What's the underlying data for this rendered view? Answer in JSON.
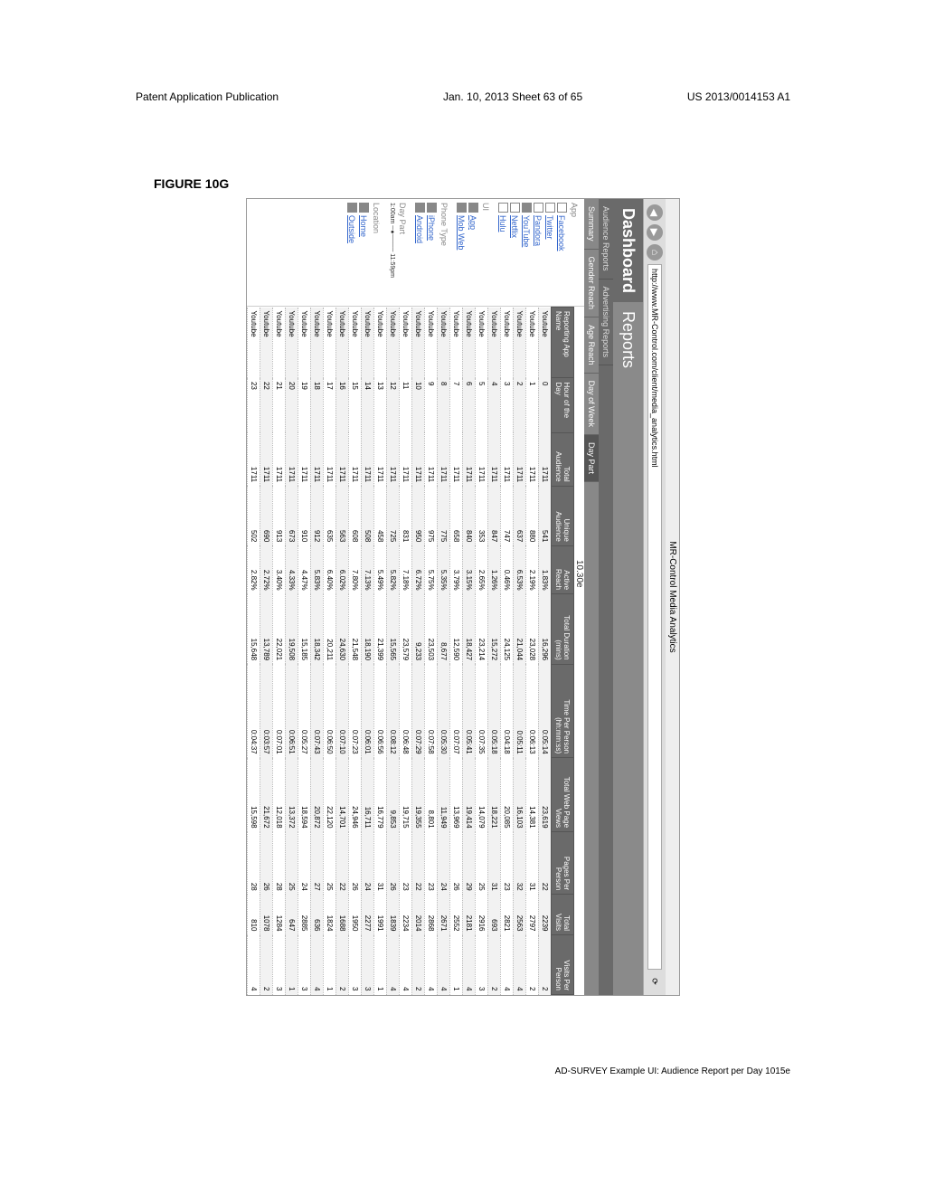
{
  "pageHeader": {
    "left": "Patent Application Publication",
    "sheet": "Jan. 10, 2013  Sheet 63 of 65",
    "right": "US 2013/0014153 A1"
  },
  "figure": {
    "label": "FIGURE 10G",
    "caption": "AD-SURVEY Example UI: Audience Report per Day 1015e"
  },
  "browser": {
    "title": "MR-Control Media Analytics",
    "url": "http://www.MR-Control.com/client/media_analytics.html"
  },
  "dashboard": {
    "left": "Dashboard",
    "right": "Reports"
  },
  "tabs1": [
    "Audience Reports",
    "Advertising Reports"
  ],
  "tabs2": [
    "Summary",
    "Gender Reach",
    "Age Reach",
    "Day of Week",
    "Day Part"
  ],
  "callout": "10.30e",
  "sidebar": {
    "app": {
      "header": "App",
      "items": [
        {
          "label": "Facebook",
          "checked": false
        },
        {
          "label": "Twitter",
          "checked": false
        },
        {
          "label": "Pandora",
          "checked": false
        },
        {
          "label": "YouTube",
          "checked": true
        },
        {
          "label": "Netflix",
          "checked": false
        },
        {
          "label": "Hulu",
          "checked": false
        }
      ]
    },
    "ui": {
      "header": "UI",
      "items": [
        {
          "label": "App",
          "checked": true
        },
        {
          "label": "Mob Web",
          "checked": true
        }
      ]
    },
    "phone": {
      "header": "Phone Type",
      "items": [
        {
          "label": "iPhone",
          "checked": true
        },
        {
          "label": "Android",
          "checked": true
        }
      ]
    },
    "daypart": {
      "header": "Day Part"
    },
    "location": {
      "header": "Location",
      "items": [
        {
          "label": "Home",
          "checked": true
        },
        {
          "label": "Outside",
          "checked": true
        }
      ]
    }
  },
  "table": {
    "columns": [
      "Reporting App Name",
      "Hour of the Day",
      "Total Audience",
      "Unique Audience",
      "Active Reach",
      "Total Duration (mins)",
      "Time Per Person (hh:mm:ss)",
      "Total Web Page Views",
      "Pages Per Person",
      "Total Visits",
      "Visits Per Person"
    ],
    "rows": [
      [
        "Youtube",
        "0",
        "1711",
        "541",
        "1.83%",
        "16,296",
        "0:05:14",
        "23,619",
        "22",
        "2239",
        "2"
      ],
      [
        "Youtube",
        "1",
        "1711",
        "880",
        "2.19%",
        "23,028",
        "0:06:13",
        "14,381",
        "31",
        "2797",
        "2"
      ],
      [
        "Youtube",
        "2",
        "1711",
        "637",
        "6.53%",
        "21,044",
        "0:05:11",
        "16,103",
        "32",
        "2563",
        "4"
      ],
      [
        "Youtube",
        "3",
        "1711",
        "747",
        "0.46%",
        "24,125",
        "0:04:18",
        "20,085",
        "23",
        "2821",
        "4"
      ],
      [
        "Youtube",
        "4",
        "1711",
        "847",
        "1.26%",
        "15,272",
        "0:05:18",
        "18,221",
        "31",
        "693",
        "2"
      ],
      [
        "Youtube",
        "5",
        "1711",
        "353",
        "2.65%",
        "23,214",
        "0:07:35",
        "14,079",
        "25",
        "2916",
        "3"
      ],
      [
        "Youtube",
        "6",
        "1711",
        "840",
        "3.15%",
        "18,427",
        "0:05:41",
        "19,414",
        "29",
        "2181",
        "4"
      ],
      [
        "Youtube",
        "7",
        "1711",
        "658",
        "3.79%",
        "12,590",
        "0:07:07",
        "13,969",
        "26",
        "2552",
        "1"
      ],
      [
        "Youtube",
        "8",
        "1711",
        "775",
        "5.35%",
        "8,677",
        "0:05:30",
        "11,949",
        "24",
        "2671",
        "4"
      ],
      [
        "Youtube",
        "9",
        "1711",
        "975",
        "5.75%",
        "23,503",
        "0:07:58",
        "8,801",
        "23",
        "2868",
        "4"
      ],
      [
        "Youtube",
        "10",
        "1711",
        "950",
        "6.72%",
        "9,233",
        "0:07:29",
        "19,355",
        "22",
        "2014",
        "2"
      ],
      [
        "Youtube",
        "11",
        "1711",
        "831",
        "7.18%",
        "23,579",
        "0:06:48",
        "19,715",
        "23",
        "2234",
        "4"
      ],
      [
        "Youtube",
        "12",
        "1711",
        "725",
        "5.82%",
        "15,565",
        "0:08:12",
        "9,853",
        "26",
        "1839",
        "4"
      ],
      [
        "Youtube",
        "13",
        "1711",
        "458",
        "5.49%",
        "21,399",
        "0:06:56",
        "16,779",
        "31",
        "1991",
        "1"
      ],
      [
        "Youtube",
        "14",
        "1711",
        "508",
        "7.13%",
        "18,190",
        "0:06:01",
        "16,711",
        "24",
        "2277",
        "3"
      ],
      [
        "Youtube",
        "15",
        "1711",
        "608",
        "7.80%",
        "21,548",
        "0:07:23",
        "24,946",
        "26",
        "1950",
        "3"
      ],
      [
        "Youtube",
        "16",
        "1711",
        "563",
        "6.02%",
        "24,630",
        "0:07:10",
        "14,701",
        "22",
        "1688",
        "2"
      ],
      [
        "Youtube",
        "17",
        "1711",
        "635",
        "6.40%",
        "20,211",
        "0:06:50",
        "22,120",
        "25",
        "1824",
        "1"
      ],
      [
        "Youtube",
        "18",
        "1711",
        "912",
        "5.83%",
        "18,342",
        "0:07:43",
        "20,872",
        "27",
        "636",
        "4"
      ],
      [
        "Youtube",
        "19",
        "1711",
        "910",
        "4.47%",
        "15,185",
        "0:05:27",
        "18,594",
        "24",
        "2885",
        "3"
      ],
      [
        "Youtube",
        "20",
        "1711",
        "673",
        "4.33%",
        "19,508",
        "0:06:51",
        "13,372",
        "25",
        "647",
        "1"
      ],
      [
        "Youtube",
        "21",
        "1711",
        "913",
        "3.40%",
        "22,021",
        "0:07:01",
        "12,018",
        "28",
        "1284",
        "3"
      ],
      [
        "Youtube",
        "22",
        "1711",
        "690",
        "2.72%",
        "13,789",
        "0:03:57",
        "21,672",
        "26",
        "1078",
        "2"
      ],
      [
        "Youtube",
        "23",
        "1711",
        "502",
        "2.82%",
        "15,648",
        "0:04:37",
        "15,598",
        "28",
        "810",
        "4"
      ]
    ]
  },
  "colors": {
    "headerBg": "#6a6a6a",
    "rowOdd": "#f2f2f2",
    "rowEven": "#ffffff",
    "link": "#3366cc",
    "sidebarBg": "#ffffff"
  }
}
